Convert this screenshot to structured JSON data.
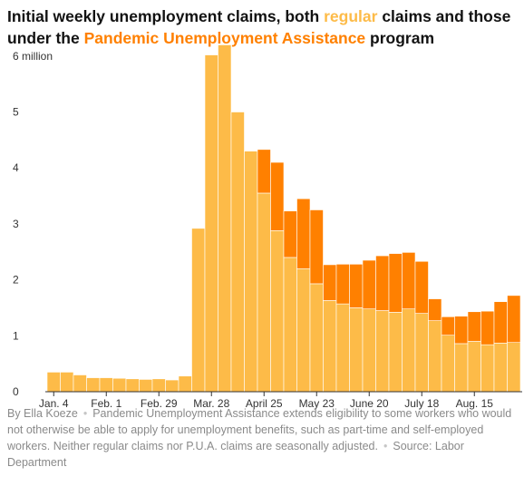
{
  "title": {
    "before": "Initial weekly unemployment claims, both ",
    "regular": "regular",
    "middle": " claims and those under the ",
    "pua": "Pandemic Unemployment Assistance",
    "after": " program"
  },
  "colors": {
    "regular": "#fdbb48",
    "pua": "#ff8000",
    "axis": "#333333",
    "tick_text": "#333333"
  },
  "chart_data": {
    "type": "bar",
    "stacked": true,
    "title": "Initial weekly unemployment claims, both regular claims and those under the Pandemic Unemployment Assistance program",
    "xlabel": "",
    "ylabel": "",
    "ylim": [
      0,
      6.15
    ],
    "y_unit_label": "6 million",
    "y_ticks": [
      0,
      1,
      2,
      3,
      4,
      5,
      6
    ],
    "y_tick_labels": [
      "0",
      "1",
      "2",
      "3",
      "4",
      "5",
      "6 million"
    ],
    "x_tick_labels": [
      {
        "index": 0,
        "label": "Jan. 4"
      },
      {
        "index": 4,
        "label": "Feb. 1"
      },
      {
        "index": 8,
        "label": "Feb. 29"
      },
      {
        "index": 12,
        "label": "Mar. 28"
      },
      {
        "index": 16,
        "label": "April 25"
      },
      {
        "index": 20,
        "label": "May 23"
      },
      {
        "index": 24,
        "label": "June 20"
      },
      {
        "index": 28,
        "label": "July 18"
      },
      {
        "index": 32,
        "label": "Aug. 15"
      }
    ],
    "series": [
      {
        "name": "regular",
        "values": [
          0.35,
          0.35,
          0.3,
          0.25,
          0.25,
          0.24,
          0.23,
          0.22,
          0.23,
          0.21,
          0.28,
          2.92,
          6.02,
          6.2,
          5.0,
          4.3,
          3.55,
          2.88,
          2.4,
          2.2,
          1.93,
          1.63,
          1.57,
          1.5,
          1.48,
          1.45,
          1.42,
          1.48,
          1.4,
          1.27,
          1.01,
          0.86,
          0.9,
          0.84,
          0.87,
          0.88
        ]
      },
      {
        "name": "PUA",
        "values": [
          0,
          0,
          0,
          0,
          0,
          0,
          0,
          0,
          0,
          0,
          0,
          0,
          0,
          0,
          0,
          0,
          0.78,
          1.22,
          0.83,
          1.25,
          1.32,
          0.64,
          0.71,
          0.78,
          0.87,
          0.98,
          1.05,
          1.01,
          0.93,
          0.39,
          0.33,
          0.49,
          0.53,
          0.6,
          0.74,
          0.84
        ]
      }
    ]
  },
  "note": {
    "byline": "By Ella Koeze",
    "description": "Pandemic Unemployment Assistance extends eligibility to some workers who would not otherwise be able to apply for unemployment benefits, such as part-time and self-employed workers. Neither regular claims nor P.U.A. claims are seasonally adjusted.",
    "source": "Source: Labor Department",
    "separator": "•"
  }
}
